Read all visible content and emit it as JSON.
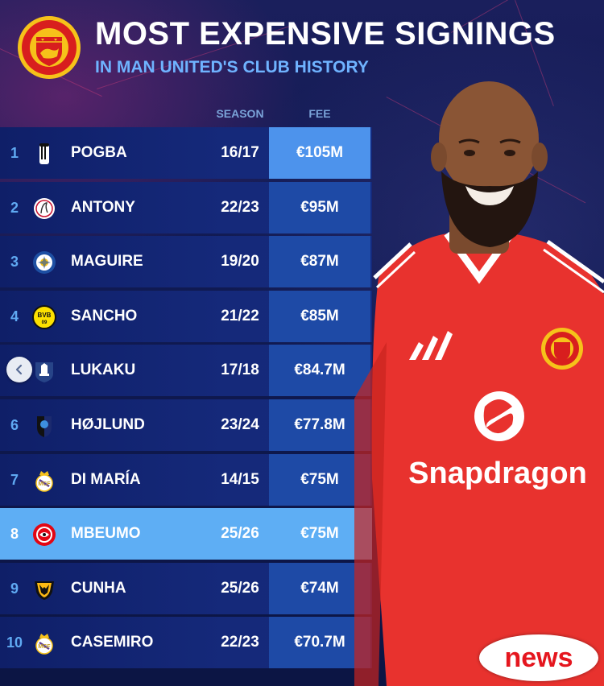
{
  "header": {
    "title": "MOST EXPENSIVE SIGNINGS",
    "subtitle": "IN MAN UNITED'S CLUB HISTORY",
    "crest_icon": "manchester-united-crest"
  },
  "table": {
    "col_season": "SEASON",
    "col_fee": "FEE",
    "rows": [
      {
        "rank": "1",
        "name": "POGBA",
        "season": "16/17",
        "fee": "€105M",
        "club_icon": "juventus-badge"
      },
      {
        "rank": "2",
        "name": "ANTONY",
        "season": "22/23",
        "fee": "€95M",
        "club_icon": "ajax-badge"
      },
      {
        "rank": "3",
        "name": "MAGUIRE",
        "season": "19/20",
        "fee": "€87M",
        "club_icon": "leicester-badge"
      },
      {
        "rank": "4",
        "name": "SANCHO",
        "season": "21/22",
        "fee": "€85M",
        "club_icon": "dortmund-badge"
      },
      {
        "rank": "",
        "name": "LUKAKU",
        "season": "17/18",
        "fee": "€84.7M",
        "club_icon": "everton-badge"
      },
      {
        "rank": "6",
        "name": "HØJLUND",
        "season": "23/24",
        "fee": "€77.8M",
        "club_icon": "atalanta-badge"
      },
      {
        "rank": "7",
        "name": "DI MARÍA",
        "season": "14/15",
        "fee": "€75M",
        "club_icon": "real-madrid-badge"
      },
      {
        "rank": "8",
        "name": "MBEUMO",
        "season": "25/26",
        "fee": "€75M",
        "club_icon": "brentford-badge",
        "highlight": true
      },
      {
        "rank": "9",
        "name": "CUNHA",
        "season": "25/26",
        "fee": "€74M",
        "club_icon": "wolves-badge"
      },
      {
        "rank": "10",
        "name": "CASEMIRO",
        "season": "22/23",
        "fee": "€70.7M",
        "club_icon": "real-madrid-badge"
      }
    ]
  },
  "player": {
    "sponsor_text": "Snapdragon",
    "shirt_color": "#e8322e",
    "brand_icon": "adidas-logo"
  },
  "overlay": {
    "back_icon": "chevron-left-icon",
    "news_label": "news"
  },
  "colors": {
    "background": "#101a52",
    "row": "#15297a",
    "fee_cell": "#1e4aa6",
    "highlight": "#5eaef4",
    "accent_blue": "#6fb3ff",
    "news_red": "#e5161e"
  }
}
